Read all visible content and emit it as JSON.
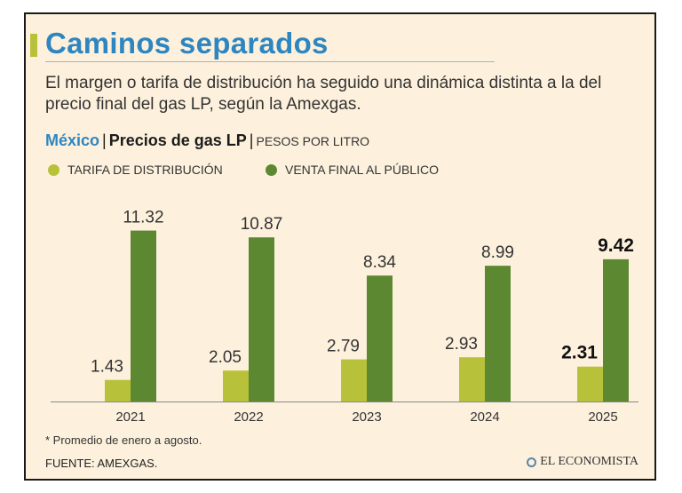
{
  "colors": {
    "tarifa": "#b8c13a",
    "venta": "#5d8832",
    "title": "#2e86c1",
    "accent": "#b8c13a"
  },
  "title": "Caminos separados",
  "subtitle": "El margen o tarifa de distribución ha seguido una dinámica distinta a la del precio final del gas LP, según la Amexgas.",
  "chart_header": {
    "country": "México",
    "separator": "|",
    "name": "Precios de gas LP",
    "unit": "PESOS POR LITRO"
  },
  "chart_data": {
    "type": "bar",
    "categories": [
      "2021",
      "2022",
      "2023",
      "2024",
      "2025"
    ],
    "series": [
      {
        "name": "TARIFA DE DISTRIBUCIÓN",
        "values": [
          1.43,
          2.05,
          2.79,
          2.93,
          2.31
        ],
        "labels": [
          "1.43",
          "2.05",
          "2.79",
          "2.93",
          "2.31"
        ]
      },
      {
        "name": "VENTA FINAL AL PÚBLICO",
        "values": [
          11.32,
          10.87,
          8.34,
          8.99,
          9.42
        ],
        "labels": [
          "11.32",
          "10.87",
          "8.34",
          "8.99",
          "9.42"
        ]
      }
    ],
    "highlight_category": "2025",
    "ylim": [
      0,
      12
    ],
    "xlabel": "",
    "ylabel": "",
    "grid": false,
    "legend_position": "top-left"
  },
  "footnote": "* Promedio de enero a agosto.",
  "source": "FUENTE: AMEXGAS.",
  "brand": "EL ECONOMISTA"
}
